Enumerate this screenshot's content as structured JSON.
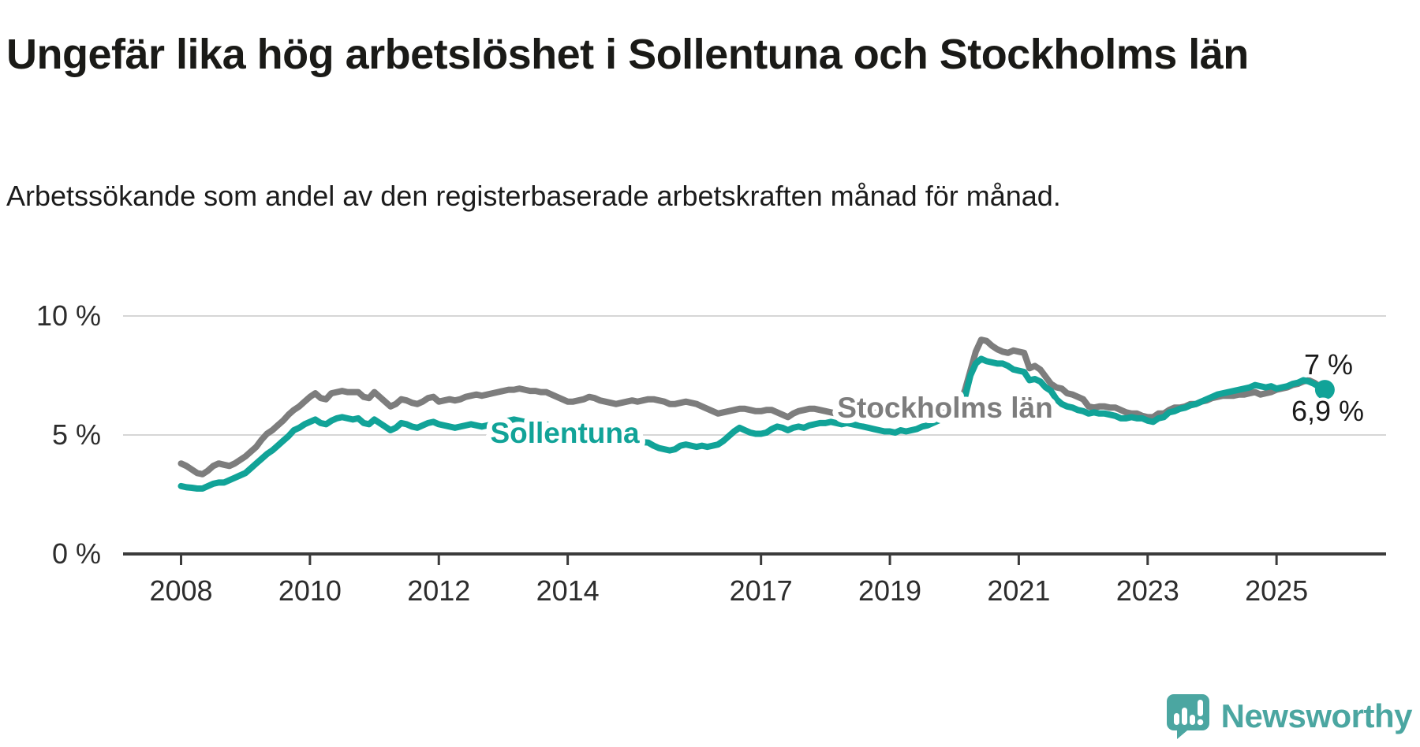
{
  "title": "Ungefär lika hög arbetslöshet i Sollentuna och Stockholms län",
  "subtitle": "Arbetssökande som andel av den registerbaserade arbetskraften månad för månad.",
  "branding": {
    "name": "Newsworthy",
    "icon": "speech-bubble-bar-chart-icon",
    "color": "#4ba6a1"
  },
  "colors": {
    "sollentuna_line": "#11a398",
    "stockholm_line": "#7d7d7d",
    "title_text": "#1a1a17",
    "axis_text": "#2d2d2d",
    "gridline": "#d6d6d6",
    "axis_line": "#3b3b3b",
    "end_label_text": "#1a1a1a",
    "background": "#ffffff"
  },
  "chart_data": {
    "type": "line",
    "unit": "%",
    "frequency": "monthly",
    "x_start_year": 2008,
    "x_end": "2025-10",
    "xlim": [
      2007.1,
      2026.7
    ],
    "ylim": [
      0,
      10
    ],
    "grid": "horizontal-only",
    "legend": "inline-labels",
    "y_gridlines": [
      5,
      10
    ],
    "y_tick_labels": [
      {
        "value": 10,
        "label": "10 %"
      },
      {
        "value": 5,
        "label": "5 %"
      },
      {
        "value": 0,
        "label": "0 %"
      }
    ],
    "x_ticks": [
      2008,
      2010,
      2012,
      2014,
      2017,
      2019,
      2021,
      2023,
      2025
    ],
    "series": [
      {
        "name": "Stockholms län",
        "color": "#7d7d7d",
        "end_label": "7 %",
        "end_value": 7.0,
        "values": [
          3.8,
          3.7,
          3.55,
          3.4,
          3.35,
          3.5,
          3.7,
          3.8,
          3.75,
          3.7,
          3.8,
          3.95,
          4.1,
          4.3,
          4.5,
          4.8,
          5.05,
          5.2,
          5.4,
          5.6,
          5.85,
          6.05,
          6.2,
          6.4,
          6.6,
          6.75,
          6.55,
          6.5,
          6.75,
          6.8,
          6.85,
          6.8,
          6.8,
          6.8,
          6.6,
          6.55,
          6.8,
          6.6,
          6.4,
          6.2,
          6.3,
          6.5,
          6.45,
          6.35,
          6.3,
          6.4,
          6.55,
          6.6,
          6.4,
          6.45,
          6.5,
          6.45,
          6.5,
          6.6,
          6.65,
          6.7,
          6.65,
          6.7,
          6.75,
          6.8,
          6.85,
          6.9,
          6.9,
          6.95,
          6.9,
          6.85,
          6.85,
          6.8,
          6.8,
          6.7,
          6.6,
          6.5,
          6.4,
          6.4,
          6.45,
          6.5,
          6.6,
          6.55,
          6.45,
          6.4,
          6.35,
          6.3,
          6.35,
          6.4,
          6.45,
          6.4,
          6.45,
          6.5,
          6.5,
          6.45,
          6.4,
          6.3,
          6.3,
          6.35,
          6.4,
          6.35,
          6.3,
          6.2,
          6.1,
          6.0,
          5.9,
          5.95,
          6.0,
          6.05,
          6.1,
          6.1,
          6.05,
          6.0,
          6.0,
          6.05,
          6.05,
          5.95,
          5.85,
          5.75,
          5.9,
          6.0,
          6.05,
          6.1,
          6.1,
          6.05,
          6.0,
          5.95,
          5.9,
          5.95,
          6.0,
          5.95,
          6.0,
          6.05,
          6.0,
          5.95,
          6.0,
          6.05,
          6.0,
          5.95,
          6.0,
          6.05,
          6.1,
          6.05,
          6.1,
          6.15,
          6.1,
          6.05,
          6.1,
          6.15,
          6.2,
          6.3,
          6.9,
          7.7,
          8.5,
          9.0,
          8.95,
          8.75,
          8.6,
          8.5,
          8.45,
          8.55,
          8.5,
          8.45,
          7.8,
          7.9,
          7.75,
          7.45,
          7.15,
          7.0,
          6.95,
          6.75,
          6.7,
          6.6,
          6.5,
          6.2,
          6.15,
          6.2,
          6.2,
          6.15,
          6.15,
          6.05,
          5.95,
          5.9,
          5.9,
          5.8,
          5.75,
          5.75,
          5.9,
          5.9,
          6.05,
          6.15,
          6.15,
          6.2,
          6.3,
          6.3,
          6.4,
          6.45,
          6.55,
          6.6,
          6.65,
          6.65,
          6.65,
          6.7,
          6.7,
          6.75,
          6.8,
          6.7,
          6.75,
          6.8,
          6.9,
          6.95,
          7.0,
          7.1,
          7.15,
          7.25,
          7.3,
          7.2,
          7.05,
          7.0
        ]
      },
      {
        "name": "Sollentuna",
        "color": "#11a398",
        "end_label": "6,9 %",
        "end_value": 6.9,
        "end_dot": true,
        "values": [
          2.85,
          2.8,
          2.78,
          2.75,
          2.75,
          2.85,
          2.95,
          3.0,
          3.0,
          3.1,
          3.2,
          3.3,
          3.4,
          3.6,
          3.8,
          4.0,
          4.2,
          4.35,
          4.55,
          4.75,
          4.95,
          5.2,
          5.3,
          5.45,
          5.55,
          5.65,
          5.5,
          5.45,
          5.6,
          5.7,
          5.75,
          5.7,
          5.65,
          5.7,
          5.5,
          5.45,
          5.65,
          5.5,
          5.35,
          5.2,
          5.3,
          5.5,
          5.45,
          5.35,
          5.3,
          5.4,
          5.5,
          5.55,
          5.45,
          5.4,
          5.35,
          5.3,
          5.35,
          5.4,
          5.45,
          5.4,
          5.35,
          5.4,
          5.45,
          5.5,
          5.55,
          5.6,
          5.65,
          5.6,
          5.55,
          5.5,
          5.55,
          5.5,
          5.45,
          5.35,
          5.25,
          5.15,
          5.1,
          5.05,
          5.1,
          5.05,
          5.0,
          4.95,
          4.9,
          4.85,
          4.8,
          4.75,
          4.8,
          4.75,
          4.7,
          4.65,
          4.7,
          4.68,
          4.55,
          4.45,
          4.4,
          4.35,
          4.4,
          4.55,
          4.6,
          4.55,
          4.5,
          4.55,
          4.5,
          4.55,
          4.6,
          4.75,
          4.95,
          5.15,
          5.3,
          5.2,
          5.1,
          5.05,
          5.05,
          5.1,
          5.25,
          5.35,
          5.3,
          5.2,
          5.3,
          5.35,
          5.3,
          5.4,
          5.45,
          5.5,
          5.5,
          5.55,
          5.5,
          5.45,
          5.5,
          5.45,
          5.4,
          5.35,
          5.3,
          5.25,
          5.2,
          5.15,
          5.15,
          5.1,
          5.2,
          5.15,
          5.2,
          5.25,
          5.35,
          5.4,
          5.5,
          5.6,
          5.7,
          5.8,
          5.85,
          5.95,
          6.6,
          7.5,
          8.0,
          8.2,
          8.1,
          8.05,
          8.0,
          8.0,
          7.9,
          7.75,
          7.7,
          7.65,
          7.3,
          7.35,
          7.25,
          7.0,
          6.85,
          6.5,
          6.3,
          6.2,
          6.15,
          6.05,
          6.0,
          5.9,
          5.95,
          5.9,
          5.9,
          5.85,
          5.8,
          5.7,
          5.7,
          5.75,
          5.7,
          5.7,
          5.6,
          5.55,
          5.7,
          5.75,
          5.95,
          6.0,
          6.1,
          6.15,
          6.25,
          6.3,
          6.4,
          6.5,
          6.6,
          6.7,
          6.75,
          6.8,
          6.85,
          6.9,
          6.95,
          7.0,
          7.1,
          7.05,
          7.0,
          7.05,
          6.95,
          7.0,
          7.05,
          7.15,
          7.2,
          7.3,
          7.25,
          7.15,
          7.0,
          6.9
        ]
      }
    ]
  }
}
